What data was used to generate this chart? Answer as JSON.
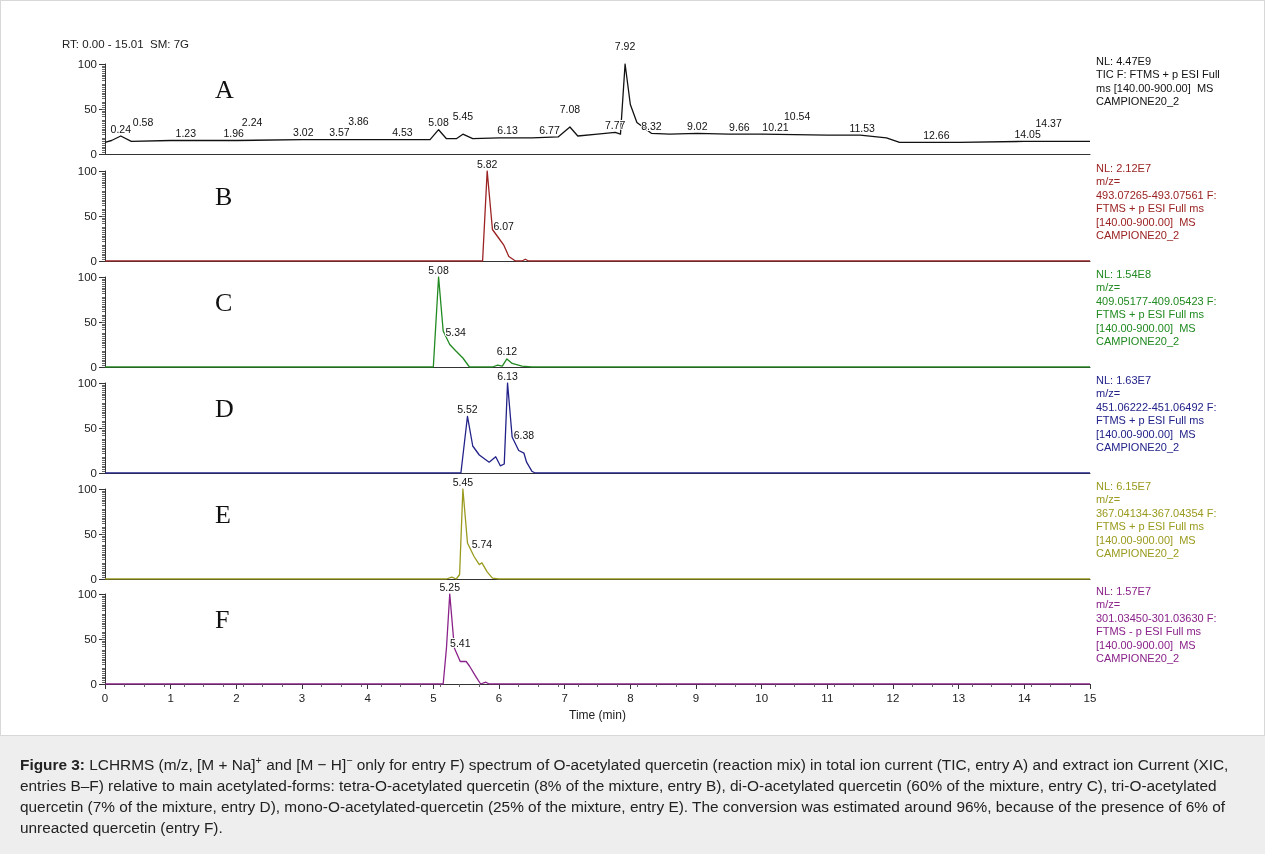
{
  "chart_data": [
    {
      "type": "line",
      "title": "A",
      "subtitle": "RT: 0.00 - 15.01  SM: 7G",
      "tick_labels": "y",
      "marker": "none",
      "line_style": "solid",
      "grid": false,
      "x": [
        0,
        0.1,
        0.24,
        0.4,
        1,
        2,
        3,
        4,
        4.95,
        5.08,
        5.2,
        5.35,
        5.45,
        5.6,
        6,
        6.5,
        6.9,
        7.08,
        7.2,
        7.5,
        7.77,
        7.85,
        7.92,
        8.0,
        8.1,
        8.32,
        8.6,
        9.02,
        9.5,
        10,
        11,
        11.5,
        11.9,
        12.1,
        12.5,
        13,
        14,
        15
      ],
      "series": [
        {
          "color": "#111111",
          "values": [
            13,
            15,
            20,
            14,
            15,
            15,
            16,
            16,
            16,
            27,
            17,
            17,
            22,
            17,
            18,
            18,
            19,
            30,
            20,
            22,
            24,
            22,
            100,
            55,
            35,
            23,
            22,
            23,
            22,
            22,
            21,
            21,
            18,
            13,
            13,
            13,
            14,
            14
          ]
        }
      ],
      "xlim": [
        0,
        15
      ],
      "xticks": [
        0,
        1,
        2,
        3,
        4,
        5,
        6,
        7,
        8,
        9,
        10,
        11,
        12,
        13,
        14,
        15
      ],
      "ylim": [
        0,
        100
      ],
      "yticks": [
        0,
        50,
        100
      ],
      "annotations": [
        "NL: 4.47E9\nTIC F: FTMS + p ESI Full\nms [140.00-900.00]  MS\nCAMPIONE20_2",
        {
          "text": "0.24",
          "x": 0.24,
          "y": 20
        },
        {
          "text": "0.58",
          "x": 0.58,
          "y": 15
        },
        {
          "text": "1.23",
          "x": 1.23,
          "y": 15
        },
        {
          "text": "1.96",
          "x": 1.96,
          "y": 15
        },
        {
          "text": "2.24",
          "x": 2.24,
          "y": 15
        },
        {
          "text": "3.02",
          "x": 3.02,
          "y": 16
        },
        {
          "text": "3.57",
          "x": 3.57,
          "y": 16
        },
        {
          "text": "3.86",
          "x": 3.86,
          "y": 16
        },
        {
          "text": "4.53",
          "x": 4.53,
          "y": 16
        },
        {
          "text": "5.08",
          "x": 5.08,
          "y": 27
        },
        {
          "text": "5.45",
          "x": 5.45,
          "y": 22
        },
        {
          "text": "6.13",
          "x": 6.13,
          "y": 18
        },
        {
          "text": "6.77",
          "x": 6.77,
          "y": 18
        },
        {
          "text": "7.08",
          "x": 7.08,
          "y": 30
        },
        {
          "text": "7.77",
          "x": 7.77,
          "y": 24
        },
        {
          "text": "7.92",
          "x": 7.92,
          "y": 100
        },
        {
          "text": "8.32",
          "x": 8.32,
          "y": 23
        },
        {
          "text": "9.02",
          "x": 9.02,
          "y": 23
        },
        {
          "text": "9.66",
          "x": 9.66,
          "y": 22
        },
        {
          "text": "10.21",
          "x": 10.21,
          "y": 22
        },
        {
          "text": "10.54",
          "x": 10.54,
          "y": 22
        },
        {
          "text": "11.53",
          "x": 11.53,
          "y": 21
        },
        {
          "text": "12.66",
          "x": 12.66,
          "y": 13
        },
        {
          "text": "14.05",
          "x": 14.05,
          "y": 14
        },
        {
          "text": "14.37",
          "x": 14.37,
          "y": 14
        }
      ]
    },
    {
      "type": "line",
      "title": "B",
      "tick_labels": "y",
      "marker": "none",
      "line_style": "solid",
      "grid": false,
      "x": [
        0,
        5.75,
        5.82,
        5.9,
        6.0,
        6.07,
        6.15,
        6.25,
        6.35,
        6.4,
        6.45,
        15
      ],
      "series": [
        {
          "color": "#9b2222",
          "values": [
            0,
            0,
            100,
            35,
            25,
            18,
            5,
            0,
            0,
            2,
            0,
            0
          ]
        }
      ],
      "xlim": [
        0,
        15
      ],
      "xticks": [
        0,
        1,
        2,
        3,
        4,
        5,
        6,
        7,
        8,
        9,
        10,
        11,
        12,
        13,
        14,
        15
      ],
      "ylim": [
        0,
        100
      ],
      "yticks": [
        0,
        50,
        100
      ],
      "annotations": [
        "NL: 2.12E7\nm/z=\n493.07265-493.07561 F:\nFTMS + p ESI Full ms\n[140.00-900.00]  MS\nCAMPIONE20_2",
        {
          "text": "5.82",
          "x": 5.82,
          "y": 100
        },
        {
          "text": "6.07",
          "x": 6.07,
          "y": 18
        }
      ]
    },
    {
      "type": "line",
      "title": "C",
      "tick_labels": "y",
      "marker": "none",
      "line_style": "solid",
      "grid": false,
      "x": [
        0,
        5.0,
        5.08,
        5.15,
        5.25,
        5.34,
        5.45,
        5.55,
        5.9,
        5.98,
        6.05,
        6.12,
        6.2,
        6.35,
        6.5,
        15
      ],
      "series": [
        {
          "color": "#208a20",
          "values": [
            0,
            0,
            100,
            40,
            25,
            18,
            10,
            0,
            0,
            2,
            1,
            9,
            4,
            1,
            0,
            0
          ]
        }
      ],
      "xlim": [
        0,
        15
      ],
      "xticks": [
        0,
        1,
        2,
        3,
        4,
        5,
        6,
        7,
        8,
        9,
        10,
        11,
        12,
        13,
        14,
        15
      ],
      "ylim": [
        0,
        100
      ],
      "yticks": [
        0,
        50,
        100
      ],
      "annotations": [
        "NL: 1.54E8\nm/z=\n409.05177-409.05423 F:\nFTMS + p ESI Full ms\n[140.00-900.00]  MS\nCAMPIONE20_2",
        {
          "text": "5.08",
          "x": 5.08,
          "y": 100
        },
        {
          "text": "5.34",
          "x": 5.34,
          "y": 18
        },
        {
          "text": "6.12",
          "x": 6.12,
          "y": 9
        }
      ]
    },
    {
      "type": "line",
      "title": "D",
      "tick_labels": "y",
      "marker": "none",
      "line_style": "solid",
      "grid": false,
      "x": [
        0,
        5.42,
        5.52,
        5.6,
        5.7,
        5.85,
        5.95,
        6.02,
        6.08,
        6.13,
        6.2,
        6.3,
        6.38,
        6.42,
        6.5,
        6.55,
        15
      ],
      "series": [
        {
          "color": "#22228a",
          "values": [
            0,
            0,
            63,
            30,
            20,
            12,
            18,
            8,
            10,
            100,
            40,
            25,
            22,
            12,
            2,
            0,
            0
          ]
        }
      ],
      "xlim": [
        0,
        15
      ],
      "xticks": [
        0,
        1,
        2,
        3,
        4,
        5,
        6,
        7,
        8,
        9,
        10,
        11,
        12,
        13,
        14,
        15
      ],
      "ylim": [
        0,
        100
      ],
      "yticks": [
        0,
        50,
        100
      ],
      "annotations": [
        "NL: 1.63E7\nm/z=\n451.06222-451.06492 F:\nFTMS + p ESI Full ms\n[140.00-900.00]  MS\nCAMPIONE20_2",
        {
          "text": "5.52",
          "x": 5.52,
          "y": 63
        },
        {
          "text": "6.13",
          "x": 6.13,
          "y": 100
        },
        {
          "text": "6.38",
          "x": 6.38,
          "y": 22
        }
      ]
    },
    {
      "type": "line",
      "title": "E",
      "tick_labels": "y",
      "marker": "none",
      "line_style": "solid",
      "grid": false,
      "x": [
        0,
        5.2,
        5.28,
        5.35,
        5.4,
        5.45,
        5.52,
        5.62,
        5.7,
        5.74,
        5.82,
        5.9,
        6.0,
        15
      ],
      "series": [
        {
          "color": "#9a9a1e",
          "values": [
            0,
            0,
            2,
            0,
            5,
            100,
            40,
            25,
            16,
            18,
            8,
            1,
            0,
            0
          ]
        }
      ],
      "xlim": [
        0,
        15
      ],
      "xticks": [
        0,
        1,
        2,
        3,
        4,
        5,
        6,
        7,
        8,
        9,
        10,
        11,
        12,
        13,
        14,
        15
      ],
      "ylim": [
        0,
        100
      ],
      "yticks": [
        0,
        50,
        100
      ],
      "annotations": [
        "NL: 6.15E7\nm/z=\n367.04134-367.04354 F:\nFTMS + p ESI Full ms\n[140.00-900.00]  MS\nCAMPIONE20_2",
        {
          "text": "5.45",
          "x": 5.45,
          "y": 100
        },
        {
          "text": "5.74",
          "x": 5.74,
          "y": 18
        }
      ]
    },
    {
      "type": "line",
      "title": "F",
      "xlabel": "Time (min)",
      "marker": "none",
      "line_style": "solid",
      "grid": false,
      "x": [
        0,
        5.15,
        5.2,
        5.25,
        5.32,
        5.41,
        5.5,
        5.55,
        5.65,
        5.72,
        5.8,
        5.85,
        15
      ],
      "series": [
        {
          "color": "#8a228a",
          "values": [
            0,
            0,
            40,
            100,
            40,
            25,
            25,
            20,
            8,
            0,
            2,
            0,
            0
          ]
        }
      ],
      "xlim": [
        0,
        15
      ],
      "xticks": [
        0,
        1,
        2,
        3,
        4,
        5,
        6,
        7,
        8,
        9,
        10,
        11,
        12,
        13,
        14,
        15
      ],
      "ylim": [
        0,
        100
      ],
      "yticks": [
        0,
        50,
        100
      ],
      "annotations": [
        "NL: 1.57E7\nm/z=\n301.03450-301.03630 F:\nFTMS - p ESI Full ms\n[140.00-900.00]  MS\nCAMPIONE20_2",
        {
          "text": "5.25",
          "x": 5.25,
          "y": 100
        },
        {
          "text": "5.41",
          "x": 5.41,
          "y": 25
        },
        "Figure 3: LCHRMS (m/z, [M + Na]$^{+}$ and [M − H]$^{−}$ only for entry F) spectrum of O-acetylated quercetin (reaction mix) in total ion current (TIC, entry A) and extract ion Current (XIC, entries B–F) relative to main acetylated-forms: tetra-O-acetylated quercetin (8% of the mixture, entry B), di-O-acetylated quercetin (60% of the mixture, entry C), tri-O-acetylated quercetin (7% of the mixture, entry D), mono-O-acetylated-quercetin (25% of the mixture, entry E). The conversion was estimated around 96%, because of the presence of 6% of unreacted quercetin (entry F)."
      ]
    }
  ]
}
